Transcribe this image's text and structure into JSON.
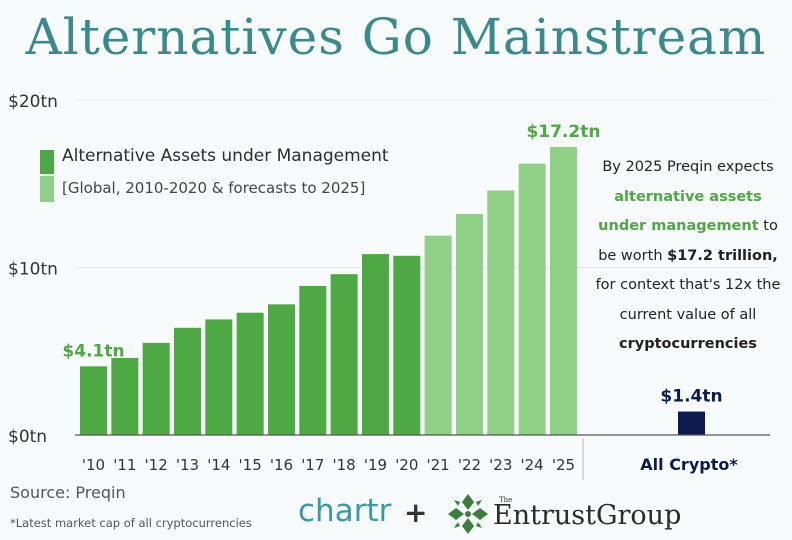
{
  "title": "Alternatives Go Mainstream",
  "legend": {
    "line1": "Alternative Assets under Management",
    "line2": "[Global, 2010-2020 & forecasts to 2025]"
  },
  "note": {
    "part1": "By 2025 Preqin expects",
    "green": "alternative assets under management",
    "part2": "to be worth",
    "bold1": "$17.2 trillion,",
    "part3": "for context that's 12x the current value of all",
    "bold2": "cryptocurrencies"
  },
  "source": "Source: Preqin",
  "footnote": "*Latest market cap of all cryptocurrencies",
  "logos": {
    "chartr": "chartr",
    "plus": "+",
    "the": "The",
    "entrust": "EntrustGroup"
  },
  "colors": {
    "actual": "#4ea843",
    "forecast": "#8fcf86",
    "crypto": "#0d1a4e",
    "title": "#3a8a8a",
    "grid": "#dfe8e8"
  },
  "chart_data": {
    "type": "bar",
    "categories": [
      "'10",
      "'11",
      "'12",
      "'13",
      "'14",
      "'15",
      "'16",
      "'17",
      "'18",
      "'19",
      "'20",
      "'21",
      "'22",
      "'23",
      "'24",
      "'25"
    ],
    "series": [
      {
        "values": [
          4.1,
          4.6,
          5.5,
          6.4,
          6.9,
          7.3,
          7.8,
          8.9,
          9.6,
          10.8,
          10.7,
          11.9,
          13.2,
          14.6,
          16.2,
          17.2
        ]
      }
    ],
    "forecast_from_index": 11,
    "comparison": {
      "category": "All Crypto*",
      "value": 1.4
    },
    "data_labels": [
      {
        "index": 0,
        "text": "$4.1tn"
      },
      {
        "index": 15,
        "text": "$17.2tn"
      },
      {
        "index": "comparison",
        "text": "$1.4tn"
      }
    ],
    "ytick_labels": [
      "$0tn",
      "$10tn",
      "$20tn"
    ],
    "yticks": [
      0,
      10,
      20
    ],
    "ylim": [
      0,
      20
    ],
    "grid": true
  }
}
